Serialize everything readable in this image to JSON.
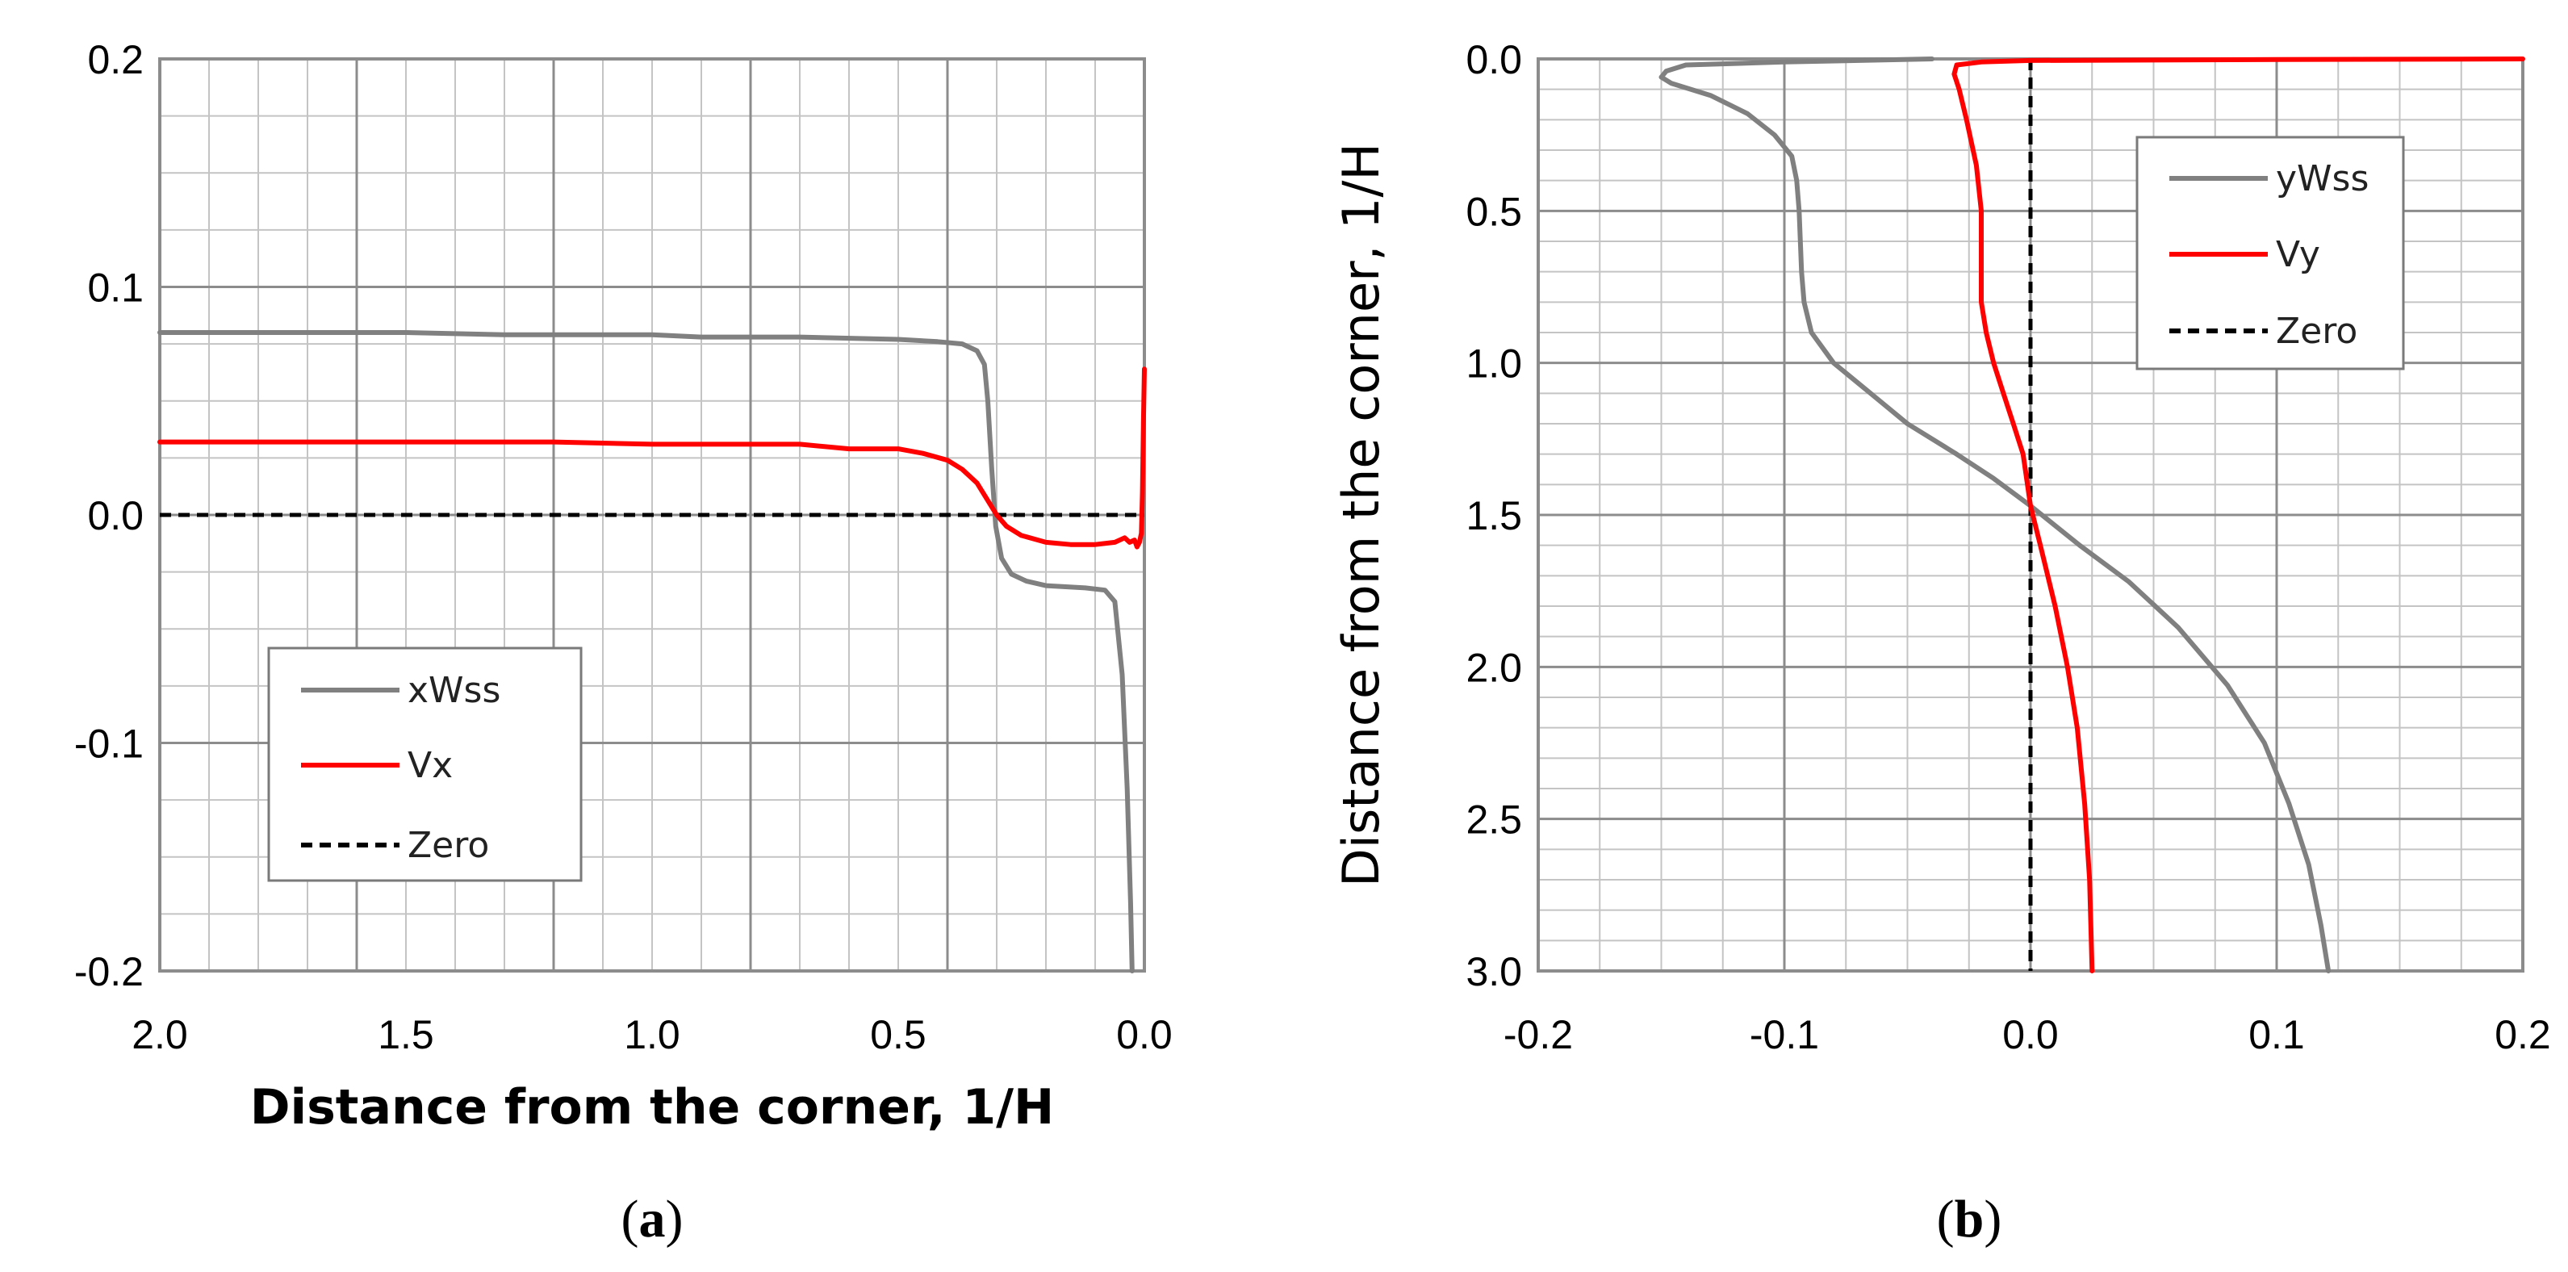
{
  "chart_data": [
    {
      "type": "line",
      "panel": "a",
      "caption_letter": "a",
      "xlabel": "Distance from the corner, 1/H",
      "ylabel": "",
      "xlim": [
        2.0,
        0.0
      ],
      "ylim": [
        -0.2,
        0.2
      ],
      "x_reversed": true,
      "xticks": [
        "2.0",
        "1.5",
        "1.0",
        "0.5",
        "0.0"
      ],
      "yticks": [
        "0.2",
        "0.1",
        "0.0",
        "-0.1",
        "-0.2"
      ],
      "grid": true,
      "legend": "bottom-left",
      "series": [
        {
          "name": "xWss",
          "color": "#808080",
          "points": [
            [
              2.0,
              0.08
            ],
            [
              1.7,
              0.08
            ],
            [
              1.5,
              0.08
            ],
            [
              1.3,
              0.079
            ],
            [
              1.0,
              0.079
            ],
            [
              0.9,
              0.078
            ],
            [
              0.7,
              0.078
            ],
            [
              0.5,
              0.077
            ],
            [
              0.42,
              0.076
            ],
            [
              0.37,
              0.075
            ],
            [
              0.34,
              0.072
            ],
            [
              0.325,
              0.066
            ],
            [
              0.318,
              0.05
            ],
            [
              0.31,
              0.02
            ],
            [
              0.302,
              -0.005
            ],
            [
              0.29,
              -0.019
            ],
            [
              0.27,
              -0.026
            ],
            [
              0.24,
              -0.029
            ],
            [
              0.2,
              -0.031
            ],
            [
              0.12,
              -0.032
            ],
            [
              0.08,
              -0.033
            ],
            [
              0.06,
              -0.038
            ],
            [
              0.045,
              -0.07
            ],
            [
              0.035,
              -0.12
            ],
            [
              0.028,
              -0.17
            ],
            [
              0.025,
              -0.2
            ]
          ]
        },
        {
          "name": "Vx",
          "color": "#ff0000",
          "points": [
            [
              2.0,
              0.032
            ],
            [
              1.5,
              0.032
            ],
            [
              1.2,
              0.032
            ],
            [
              1.0,
              0.031
            ],
            [
              0.7,
              0.031
            ],
            [
              0.6,
              0.029
            ],
            [
              0.5,
              0.029
            ],
            [
              0.45,
              0.027
            ],
            [
              0.4,
              0.024
            ],
            [
              0.37,
              0.02
            ],
            [
              0.34,
              0.014
            ],
            [
              0.32,
              0.007
            ],
            [
              0.3,
              0.0
            ],
            [
              0.28,
              -0.005
            ],
            [
              0.25,
              -0.009
            ],
            [
              0.2,
              -0.012
            ],
            [
              0.15,
              -0.013
            ],
            [
              0.1,
              -0.013
            ],
            [
              0.06,
              -0.012
            ],
            [
              0.04,
              -0.01
            ],
            [
              0.03,
              -0.012
            ],
            [
              0.02,
              -0.011
            ],
            [
              0.015,
              -0.014
            ],
            [
              0.01,
              -0.012
            ],
            [
              0.006,
              -0.008
            ],
            [
              0.004,
              0.01
            ],
            [
              0.002,
              0.04
            ],
            [
              0.0,
              0.064
            ]
          ]
        },
        {
          "name": "Zero",
          "color": "#000000",
          "dashed": true,
          "points": [
            [
              2.0,
              0.0
            ],
            [
              0.0,
              0.0
            ]
          ]
        }
      ]
    },
    {
      "type": "line",
      "panel": "b",
      "caption_letter": "b",
      "xlabel": "",
      "ylabel": "Distance from the corner, 1/H",
      "xlim": [
        -0.2,
        0.2
      ],
      "ylim": [
        3.0,
        0.0
      ],
      "y_reversed": true,
      "xticks": [
        "-0.2",
        "-0.1",
        "0.0",
        "0.1",
        "0.2"
      ],
      "yticks": [
        "0.0",
        "0.5",
        "1.0",
        "1.5",
        "2.0",
        "2.5",
        "3.0"
      ],
      "grid": true,
      "legend": "top-right",
      "series": [
        {
          "name": "yWss",
          "color": "#808080",
          "points": [
            [
              -0.04,
              0.0
            ],
            [
              -0.1,
              0.01
            ],
            [
              -0.14,
              0.02
            ],
            [
              -0.148,
              0.04
            ],
            [
              -0.15,
              0.06
            ],
            [
              -0.146,
              0.08
            ],
            [
              -0.13,
              0.12
            ],
            [
              -0.115,
              0.18
            ],
            [
              -0.104,
              0.25
            ],
            [
              -0.097,
              0.32
            ],
            [
              -0.095,
              0.4
            ],
            [
              -0.094,
              0.5
            ],
            [
              -0.093,
              0.7
            ],
            [
              -0.092,
              0.8
            ],
            [
              -0.089,
              0.9
            ],
            [
              -0.08,
              1.0
            ],
            [
              -0.065,
              1.1
            ],
            [
              -0.05,
              1.2
            ],
            [
              -0.03,
              1.3
            ],
            [
              -0.015,
              1.38
            ],
            [
              0.0,
              1.47
            ],
            [
              0.02,
              1.6
            ],
            [
              0.04,
              1.72
            ],
            [
              0.06,
              1.87
            ],
            [
              0.08,
              2.06
            ],
            [
              0.095,
              2.25
            ],
            [
              0.105,
              2.45
            ],
            [
              0.113,
              2.65
            ],
            [
              0.118,
              2.85
            ],
            [
              0.121,
              3.0
            ]
          ]
        },
        {
          "name": "Vy",
          "color": "#ff0000",
          "points": [
            [
              0.2,
              0.0
            ],
            [
              0.1,
              0.002
            ],
            [
              0.0,
              0.005
            ],
            [
              -0.02,
              0.01
            ],
            [
              -0.03,
              0.02
            ],
            [
              -0.031,
              0.05
            ],
            [
              -0.029,
              0.1
            ],
            [
              -0.026,
              0.2
            ],
            [
              -0.022,
              0.35
            ],
            [
              -0.02,
              0.5
            ],
            [
              -0.02,
              0.8
            ],
            [
              -0.018,
              0.9
            ],
            [
              -0.015,
              1.0
            ],
            [
              -0.011,
              1.1
            ],
            [
              -0.007,
              1.2
            ],
            [
              -0.003,
              1.3
            ],
            [
              0.0,
              1.47
            ],
            [
              0.004,
              1.6
            ],
            [
              0.01,
              1.8
            ],
            [
              0.015,
              2.0
            ],
            [
              0.019,
              2.2
            ],
            [
              0.022,
              2.45
            ],
            [
              0.024,
              2.7
            ],
            [
              0.025,
              3.0
            ]
          ]
        },
        {
          "name": "Zero",
          "color": "#000000",
          "dashed": true,
          "points": [
            [
              0.0,
              0.0
            ],
            [
              0.0,
              3.0
            ]
          ]
        }
      ]
    }
  ]
}
